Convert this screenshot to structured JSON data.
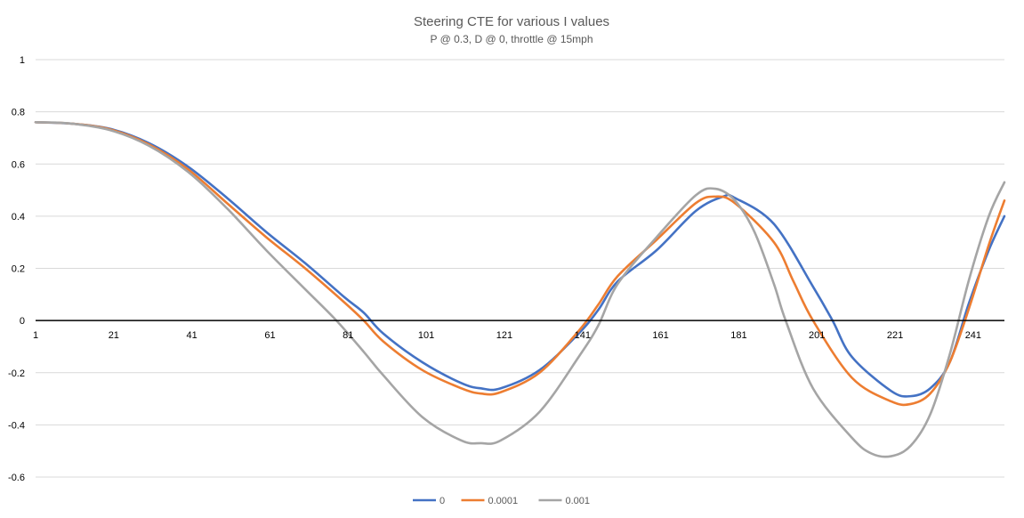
{
  "chart_data": {
    "type": "line",
    "title": "Steering CTE for various I values",
    "subtitle": "P @ 0.3, D @ 0, throttle @ 15mph",
    "xlabel": "",
    "ylabel": "",
    "x_tick_labels": [
      "1",
      "21",
      "41",
      "61",
      "81",
      "101",
      "121",
      "141",
      "161",
      "181",
      "201",
      "221",
      "241"
    ],
    "y_tick_labels": [
      "1",
      "0.8",
      "0.6",
      "0.4",
      "0.2",
      "0",
      "-0.2",
      "-0.4",
      "-0.6"
    ],
    "xlim": [
      1,
      249
    ],
    "ylim": [
      -0.6,
      1.0
    ],
    "grid": true,
    "legend_position": "bottom",
    "series": [
      {
        "name": "0",
        "color": "#4472C4",
        "points": [
          [
            1,
            0.76
          ],
          [
            10,
            0.755
          ],
          [
            20,
            0.735
          ],
          [
            30,
            0.68
          ],
          [
            40,
            0.59
          ],
          [
            50,
            0.47
          ],
          [
            60,
            0.34
          ],
          [
            70,
            0.22
          ],
          [
            80,
            0.09
          ],
          [
            85,
            0.03
          ],
          [
            90,
            -0.05
          ],
          [
            100,
            -0.16
          ],
          [
            110,
            -0.24
          ],
          [
            115,
            -0.26
          ],
          [
            120,
            -0.26
          ],
          [
            130,
            -0.19
          ],
          [
            140,
            -0.05
          ],
          [
            145,
            0.04
          ],
          [
            150,
            0.15
          ],
          [
            160,
            0.27
          ],
          [
            170,
            0.42
          ],
          [
            177,
            0.475
          ],
          [
            180,
            0.47
          ],
          [
            190,
            0.37
          ],
          [
            200,
            0.13
          ],
          [
            205,
            0.0
          ],
          [
            210,
            -0.14
          ],
          [
            220,
            -0.27
          ],
          [
            225,
            -0.29
          ],
          [
            230,
            -0.26
          ],
          [
            235,
            -0.16
          ],
          [
            240,
            0.07
          ],
          [
            245,
            0.27
          ],
          [
            249,
            0.4
          ]
        ]
      },
      {
        "name": "0.0001",
        "color": "#ED7D31",
        "points": [
          [
            1,
            0.76
          ],
          [
            10,
            0.755
          ],
          [
            20,
            0.733
          ],
          [
            30,
            0.675
          ],
          [
            40,
            0.58
          ],
          [
            50,
            0.45
          ],
          [
            60,
            0.32
          ],
          [
            70,
            0.2
          ],
          [
            80,
            0.07
          ],
          [
            85,
            0.0
          ],
          [
            90,
            -0.08
          ],
          [
            100,
            -0.19
          ],
          [
            110,
            -0.26
          ],
          [
            115,
            -0.28
          ],
          [
            120,
            -0.275
          ],
          [
            130,
            -0.2
          ],
          [
            140,
            -0.04
          ],
          [
            145,
            0.06
          ],
          [
            150,
            0.17
          ],
          [
            160,
            0.31
          ],
          [
            170,
            0.45
          ],
          [
            175,
            0.475
          ],
          [
            180,
            0.45
          ],
          [
            190,
            0.3
          ],
          [
            195,
            0.15
          ],
          [
            200,
            0.0
          ],
          [
            210,
            -0.22
          ],
          [
            220,
            -0.31
          ],
          [
            225,
            -0.32
          ],
          [
            230,
            -0.28
          ],
          [
            235,
            -0.16
          ],
          [
            240,
            0.05
          ],
          [
            245,
            0.29
          ],
          [
            249,
            0.46
          ]
        ]
      },
      {
        "name": "0.001",
        "color": "#A5A5A5",
        "points": [
          [
            1,
            0.76
          ],
          [
            10,
            0.755
          ],
          [
            20,
            0.73
          ],
          [
            30,
            0.67
          ],
          [
            40,
            0.57
          ],
          [
            50,
            0.43
          ],
          [
            60,
            0.27
          ],
          [
            70,
            0.12
          ],
          [
            78,
            0.0
          ],
          [
            85,
            -0.12
          ],
          [
            90,
            -0.21
          ],
          [
            100,
            -0.37
          ],
          [
            110,
            -0.46
          ],
          [
            115,
            -0.47
          ],
          [
            120,
            -0.46
          ],
          [
            130,
            -0.35
          ],
          [
            140,
            -0.14
          ],
          [
            145,
            -0.02
          ],
          [
            150,
            0.14
          ],
          [
            160,
            0.32
          ],
          [
            170,
            0.48
          ],
          [
            175,
            0.505
          ],
          [
            180,
            0.46
          ],
          [
            185,
            0.34
          ],
          [
            190,
            0.14
          ],
          [
            193,
            0.0
          ],
          [
            200,
            -0.26
          ],
          [
            210,
            -0.45
          ],
          [
            215,
            -0.51
          ],
          [
            220,
            -0.52
          ],
          [
            225,
            -0.48
          ],
          [
            230,
            -0.36
          ],
          [
            235,
            -0.13
          ],
          [
            240,
            0.16
          ],
          [
            245,
            0.4
          ],
          [
            249,
            0.53
          ]
        ]
      }
    ]
  }
}
